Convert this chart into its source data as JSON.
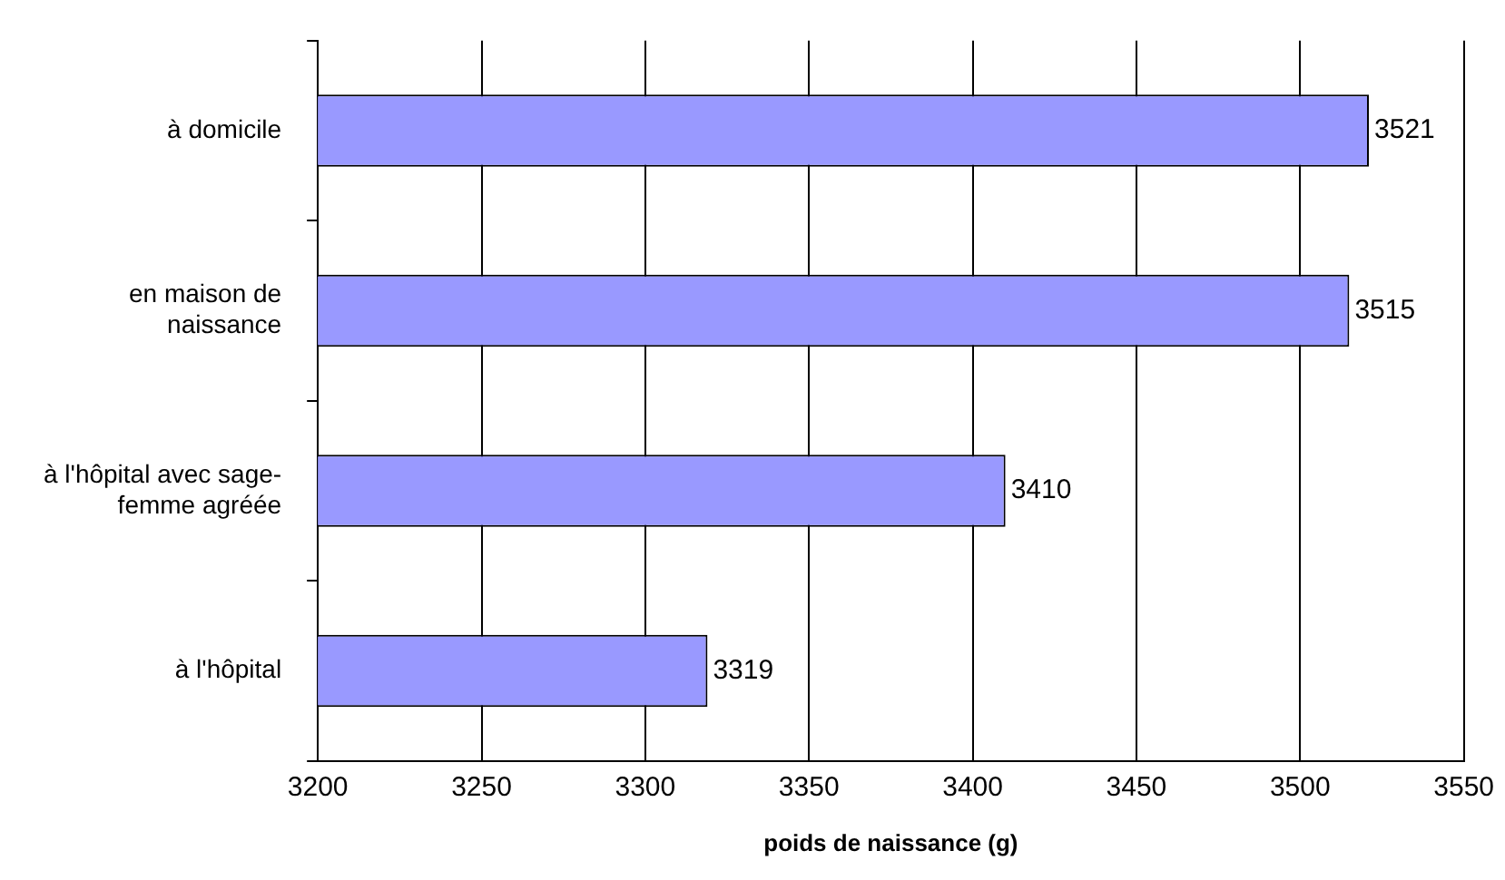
{
  "chart_data": {
    "type": "bar",
    "orientation": "horizontal",
    "xlabel": "poids de naissance (g)",
    "categories": [
      "à domicile",
      "en maison de naissance",
      "à l'hôpital avec sage-femme agréée",
      "à l'hôpital"
    ],
    "values": [
      3521,
      3515,
      3410,
      3319
    ],
    "color": "#9999ff",
    "xlim": [
      3200,
      3550
    ],
    "xticks": [
      3200,
      3250,
      3300,
      3350,
      3400,
      3450,
      3500,
      3550
    ],
    "grid": "x",
    "data_labels": true,
    "legend": false
  }
}
